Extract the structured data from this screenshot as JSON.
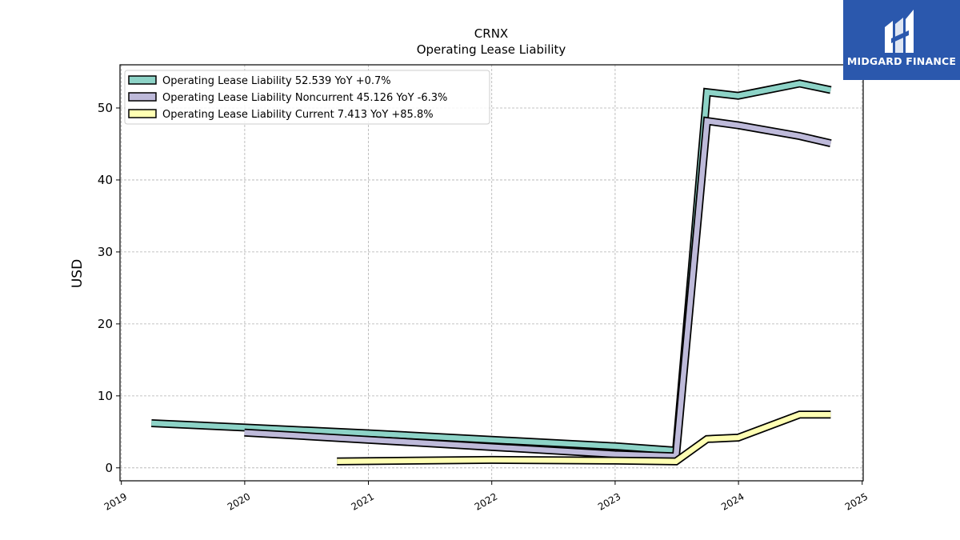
{
  "chart_data": {
    "type": "line",
    "title": "CRNX",
    "subtitle": "Operating Lease Liability",
    "ylabel": "USD",
    "xlabel": "",
    "ylim": [
      -1.8,
      56.0
    ],
    "xlim": [
      "2018-12-28",
      "2025-01-04"
    ],
    "yticks": [
      0,
      10,
      20,
      30,
      40,
      50
    ],
    "xticks": [
      "2019",
      "2020",
      "2021",
      "2022",
      "2023",
      "2024",
      "2025"
    ],
    "grid": true,
    "legend_position": "top-left",
    "series": [
      {
        "name": "Operating Lease Liability",
        "legend_label": "Operating Lease Liability  52.539 YoY +0.7%",
        "color": "#8dd3c7",
        "points": [
          [
            "2019-03-31",
            6.2
          ],
          [
            "2019-12-31",
            5.6
          ],
          [
            "2020-12-31",
            4.8
          ],
          [
            "2021-12-31",
            3.9
          ],
          [
            "2022-12-31",
            3.0
          ],
          [
            "2023-06-30",
            2.4
          ],
          [
            "2023-09-30",
            52.2
          ],
          [
            "2023-12-31",
            51.7
          ],
          [
            "2024-06-30",
            53.4
          ],
          [
            "2024-09-30",
            52.5
          ]
        ]
      },
      {
        "name": "Operating Lease Liability Noncurrent",
        "legend_label": "Operating Lease Liability Noncurrent  45.126 YoY -6.3%",
        "color": "#bebada",
        "points": [
          [
            "2019-12-31",
            4.9
          ],
          [
            "2020-12-31",
            3.9
          ],
          [
            "2021-12-31",
            2.9
          ],
          [
            "2022-12-31",
            1.9
          ],
          [
            "2023-06-30",
            1.6
          ],
          [
            "2023-09-30",
            48.2
          ],
          [
            "2023-12-31",
            47.6
          ],
          [
            "2024-06-30",
            46.1
          ],
          [
            "2024-09-30",
            45.1
          ]
        ]
      },
      {
        "name": "Operating Lease Liability Current",
        "legend_label": "Operating Lease Liability Current  7.413 YoY +85.8%",
        "color": "#ffffb3",
        "points": [
          [
            "2020-09-30",
            0.9
          ],
          [
            "2021-12-31",
            1.1
          ],
          [
            "2022-12-31",
            1.0
          ],
          [
            "2023-06-30",
            0.9
          ],
          [
            "2023-09-30",
            4.0
          ],
          [
            "2023-12-31",
            4.2
          ],
          [
            "2024-06-30",
            7.4
          ],
          [
            "2024-09-30",
            7.4
          ]
        ]
      }
    ]
  },
  "logo": {
    "text": "MIDGARD FINANCE",
    "background": "#2b58ad"
  }
}
